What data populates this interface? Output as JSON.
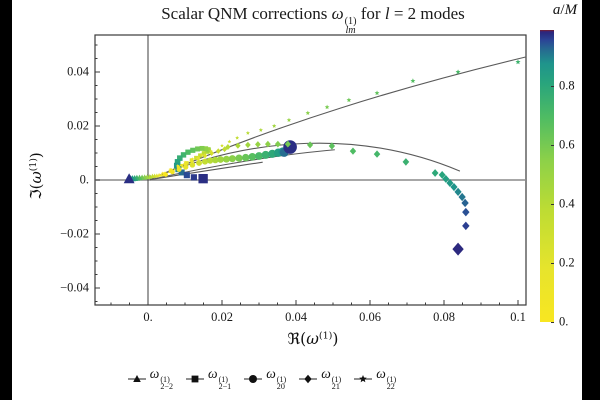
{
  "figure": {
    "title": {
      "t1": "Scalar QNM corrections ",
      "omega": "ω",
      "sup": "(1)",
      "sub": "lm",
      "t2": " for ",
      "lvar": "l",
      "t3": " = 2 modes"
    },
    "xaxis": {
      "pre": "ℜ(",
      "omega": "ω",
      "sup": "(1)",
      "post": ")"
    },
    "yaxis": {
      "pre": "ℑ(",
      "omega": "ω",
      "sup": "(1)",
      "post": ")"
    },
    "colorbar_label": {
      "a": "a",
      "slash": "/",
      "M": "M"
    }
  },
  "chart_data": {
    "type": "scatter",
    "title": "Scalar QNM corrections ω_lm^(1) for l = 2 modes",
    "xlabel": "Re(ω^(1))",
    "ylabel": "Im(ω^(1))",
    "xlim": [
      -0.0143,
      0.1022
    ],
    "ylim": [
      -0.0463,
      0.0537
    ],
    "grid": false,
    "xticks": {
      "values": [
        0,
        0.02,
        0.04,
        0.06,
        0.08,
        0.1
      ],
      "labels": [
        "0.",
        "0.02",
        "0.04",
        "0.06",
        "0.08",
        "0.1"
      ]
    },
    "xminor_step": 0.005,
    "yticks": {
      "values": [
        0.04,
        0.02,
        0,
        -0.02,
        -0.04
      ],
      "labels": [
        "0.04",
        "0.02",
        "0.",
        "−0.02",
        "−0.04"
      ]
    },
    "yminor_step": 0.005,
    "zero_lines": {
      "h_color": "#8a8a8a",
      "v_color": "#3c3c3c"
    },
    "frame_color": "#3a3a3a",
    "fit_color": "#5a5a5a",
    "colorbar": {
      "label": "a/M",
      "range": [
        0,
        0.99
      ],
      "ticks": {
        "values": [
          0.8,
          0.6,
          0.4,
          0.2,
          0
        ],
        "labels": [
          "0.8",
          "0.6",
          "0.4",
          "0.2",
          "0."
        ]
      },
      "stops": [
        [
          0.0,
          "#f8e621"
        ],
        [
          0.18,
          "#e7e42c"
        ],
        [
          0.38,
          "#bedc33"
        ],
        [
          0.55,
          "#8ed148"
        ],
        [
          0.7,
          "#4fbc63"
        ],
        [
          0.82,
          "#28a47d"
        ],
        [
          0.885,
          "#1f948c"
        ],
        [
          0.93,
          "#266d90"
        ],
        [
          0.965,
          "#2b4596"
        ],
        [
          0.988,
          "#2a2b80"
        ],
        [
          0.994,
          "#31247c"
        ],
        [
          1.0,
          "#7e1e28"
        ]
      ]
    },
    "series": [
      {
        "name": "omega_2-2",
        "marker": "triangle",
        "base_size": 2.6,
        "big_end": true,
        "points": [
          [
            0.0042,
            0.002,
            0.0
          ],
          [
            0.0036,
            0.0019,
            0.07
          ],
          [
            0.003,
            0.0018,
            0.14
          ],
          [
            0.0024,
            0.0016,
            0.21
          ],
          [
            0.0018,
            0.0015,
            0.28
          ],
          [
            0.0012,
            0.0014,
            0.35
          ],
          [
            0.0005,
            0.0012,
            0.42
          ],
          [
            -0.0002,
            0.0011,
            0.49
          ],
          [
            -0.0009,
            0.001,
            0.56
          ],
          [
            -0.0016,
            0.0009,
            0.62
          ],
          [
            -0.0023,
            0.0008,
            0.68
          ],
          [
            -0.003,
            0.0007,
            0.74
          ],
          [
            -0.0036,
            0.0006,
            0.8
          ],
          [
            -0.0042,
            0.0005,
            0.86
          ],
          [
            -0.0047,
            0.0004,
            0.92
          ],
          [
            -0.0051,
            0.0004,
            0.985
          ]
        ]
      },
      {
        "name": "omega_2-1",
        "marker": "square",
        "base_size": 2.5,
        "big_end": true,
        "points": [
          [
            0.0045,
            0.0022,
            0.0
          ],
          [
            0.006,
            0.0032,
            0.05
          ],
          [
            0.0075,
            0.0043,
            0.1
          ],
          [
            0.009,
            0.0053,
            0.15
          ],
          [
            0.0105,
            0.0063,
            0.2
          ],
          [
            0.0118,
            0.0073,
            0.25
          ],
          [
            0.013,
            0.0082,
            0.3
          ],
          [
            0.0141,
            0.0091,
            0.34
          ],
          [
            0.0151,
            0.0099,
            0.38
          ],
          [
            0.0159,
            0.0105,
            0.42
          ],
          [
            0.0164,
            0.0109,
            0.46
          ],
          [
            0.0163,
            0.0113,
            0.5
          ],
          [
            0.0156,
            0.0116,
            0.54
          ],
          [
            0.0146,
            0.0117,
            0.58
          ],
          [
            0.0134,
            0.0115,
            0.62
          ],
          [
            0.0121,
            0.011,
            0.66
          ],
          [
            0.0108,
            0.0103,
            0.7
          ],
          [
            0.0096,
            0.0093,
            0.74
          ],
          [
            0.0086,
            0.0081,
            0.78
          ],
          [
            0.008,
            0.0067,
            0.82
          ],
          [
            0.0078,
            0.0053,
            0.86
          ],
          [
            0.0082,
            0.004,
            0.9
          ],
          [
            0.0091,
            0.0028,
            0.93
          ],
          [
            0.0105,
            0.0018,
            0.96
          ],
          [
            0.0124,
            0.001,
            0.975
          ],
          [
            0.0149,
            0.0005,
            0.985
          ]
        ]
      },
      {
        "name": "omega_20",
        "marker": "circle",
        "base_size": 3.1,
        "big_end": true,
        "points": [
          [
            0.0048,
            0.002,
            0.0
          ],
          [
            0.0066,
            0.003,
            0.06
          ],
          [
            0.0084,
            0.0039,
            0.12
          ],
          [
            0.0102,
            0.0048,
            0.18
          ],
          [
            0.012,
            0.0056,
            0.24
          ],
          [
            0.0138,
            0.0063,
            0.3
          ],
          [
            0.0154,
            0.0068,
            0.35
          ],
          [
            0.0168,
            0.0072,
            0.4
          ],
          [
            0.0182,
            0.0074,
            0.44
          ],
          [
            0.0196,
            0.0076,
            0.48
          ],
          [
            0.0212,
            0.0077,
            0.52
          ],
          [
            0.0228,
            0.0079,
            0.56
          ],
          [
            0.0246,
            0.0081,
            0.6
          ],
          [
            0.0264,
            0.0083,
            0.64
          ],
          [
            0.0282,
            0.0086,
            0.68
          ],
          [
            0.03,
            0.0089,
            0.72
          ],
          [
            0.0318,
            0.0093,
            0.76
          ],
          [
            0.0336,
            0.0097,
            0.8
          ],
          [
            0.0352,
            0.0101,
            0.84
          ],
          [
            0.0364,
            0.0105,
            0.88
          ],
          [
            0.0368,
            0.0102,
            0.93
          ],
          [
            0.0384,
            0.0122,
            0.985
          ]
        ]
      },
      {
        "name": "omega_21",
        "marker": "diamond",
        "base_size": 2.8,
        "big_end": true,
        "points": [
          [
            0.0046,
            0.0024,
            0.0
          ],
          [
            0.0064,
            0.0036,
            0.04
          ],
          [
            0.0082,
            0.0048,
            0.08
          ],
          [
            0.01,
            0.0059,
            0.12
          ],
          [
            0.0118,
            0.007,
            0.16
          ],
          [
            0.0136,
            0.008,
            0.2
          ],
          [
            0.0154,
            0.009,
            0.24
          ],
          [
            0.0172,
            0.0099,
            0.28
          ],
          [
            0.019,
            0.0107,
            0.32
          ],
          [
            0.0207,
            0.0114,
            0.36
          ],
          [
            0.0216,
            0.0122,
            0.4
          ],
          [
            0.0243,
            0.0127,
            0.44
          ],
          [
            0.027,
            0.013,
            0.48
          ],
          [
            0.0297,
            0.0132,
            0.52
          ],
          [
            0.0324,
            0.0133,
            0.55
          ],
          [
            0.0351,
            0.0133,
            0.58
          ],
          [
            0.0378,
            0.0133,
            0.61
          ],
          [
            0.0438,
            0.013,
            0.64
          ],
          [
            0.0497,
            0.0126,
            0.67
          ],
          [
            0.0554,
            0.0107,
            0.7
          ],
          [
            0.0619,
            0.0096,
            0.73
          ],
          [
            0.0697,
            0.0067,
            0.76
          ],
          [
            0.0776,
            0.0026,
            0.8
          ],
          [
            0.0795,
            0.0019,
            0.82
          ],
          [
            0.0805,
            0.0004,
            0.84
          ],
          [
            0.0816,
            -0.0011,
            0.86
          ],
          [
            0.0827,
            -0.0026,
            0.88
          ],
          [
            0.0838,
            -0.0044,
            0.9
          ],
          [
            0.0849,
            -0.0063,
            0.92
          ],
          [
            0.0857,
            -0.0085,
            0.94
          ],
          [
            0.0859,
            -0.0119,
            0.955
          ],
          [
            0.0859,
            -0.017,
            0.97
          ],
          [
            0.0838,
            -0.0256,
            0.99
          ]
        ]
      },
      {
        "name": "omega_22",
        "marker": "star",
        "base_size": 2.1,
        "big_end": false,
        "points": [
          [
            0.004,
            0.0026,
            0.0
          ],
          [
            0.006,
            0.004,
            0.04
          ],
          [
            0.008,
            0.0053,
            0.08
          ],
          [
            0.01,
            0.0066,
            0.12
          ],
          [
            0.012,
            0.0078,
            0.16
          ],
          [
            0.0145,
            0.0092,
            0.2
          ],
          [
            0.017,
            0.0107,
            0.24
          ],
          [
            0.02,
            0.0127,
            0.28
          ],
          [
            0.022,
            0.0142,
            0.32
          ],
          [
            0.0241,
            0.0156,
            0.36
          ],
          [
            0.027,
            0.0174,
            0.4
          ],
          [
            0.0305,
            0.0185,
            0.44
          ],
          [
            0.0341,
            0.02,
            0.48
          ],
          [
            0.0381,
            0.0222,
            0.52
          ],
          [
            0.0432,
            0.0248,
            0.56
          ],
          [
            0.0484,
            0.027,
            0.6
          ],
          [
            0.0543,
            0.0296,
            0.63
          ],
          [
            0.0619,
            0.0322,
            0.66
          ],
          [
            0.0716,
            0.0367,
            0.69
          ],
          [
            0.0838,
            0.04,
            0.72
          ],
          [
            0.1,
            0.0437,
            0.75
          ]
        ]
      }
    ],
    "fit_curves": [
      {
        "name": "fit-22",
        "p0": [
          0.0005,
          0.0002
        ],
        "c1": [
          0.035,
          0.021
        ],
        "c2": [
          0.07,
          0.035
        ],
        "p1": [
          0.1022,
          0.0456
        ]
      },
      {
        "name": "fit-21",
        "p0": [
          0.0005,
          0.0002
        ],
        "c1": [
          0.028,
          0.0165
        ],
        "c2": [
          0.058,
          0.0185
        ],
        "p1": [
          0.0843,
          0.0033
        ]
      },
      {
        "name": "fit-20",
        "p0": [
          0.0005,
          0.0001
        ],
        "c1": [
          0.018,
          0.0055
        ],
        "c2": [
          0.036,
          0.0095
        ],
        "p1": [
          0.0505,
          0.0112
        ]
      },
      {
        "name": "fit-2-1",
        "p0": [
          0.0005,
          0.0001
        ],
        "c1": [
          0.011,
          0.0025
        ],
        "c2": [
          0.021,
          0.0045
        ],
        "p1": [
          0.031,
          0.0066
        ]
      },
      {
        "name": "fit-2-2",
        "p0": [
          0.0008,
          0.0015
        ],
        "c1": [
          -0.001,
          0.001
        ],
        "c2": [
          -0.003,
          0.0006
        ],
        "p1": [
          -0.0055,
          0.0002
        ]
      }
    ]
  },
  "legend": {
    "items": [
      {
        "marker": "triangle",
        "omega": "ω",
        "sup": "(1)",
        "sub": "2−2"
      },
      {
        "marker": "square",
        "omega": "ω",
        "sup": "(1)",
        "sub": "2−1"
      },
      {
        "marker": "circle",
        "omega": "ω",
        "sup": "(1)",
        "sub": "20"
      },
      {
        "marker": "diamond",
        "omega": "ω",
        "sup": "(1)",
        "sub": "21"
      },
      {
        "marker": "star",
        "omega": "ω",
        "sup": "(1)",
        "sub": "22"
      }
    ]
  }
}
